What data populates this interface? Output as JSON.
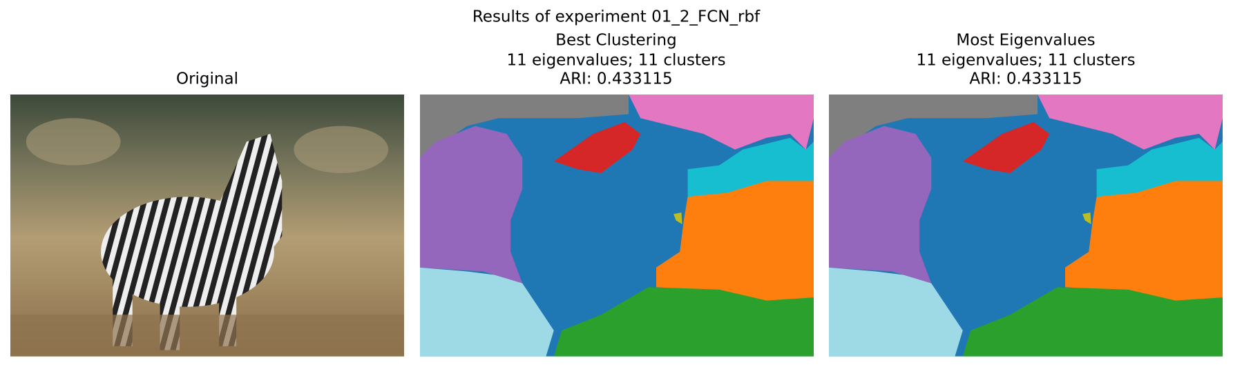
{
  "title": "Results of experiment 01_2_FCN_rbf",
  "panels": [
    {
      "title_lines": [
        "Original"
      ]
    },
    {
      "title_lines": [
        "Best Clustering",
        "11 eigenvalues; 11 clusters",
        "ARI: 0.433115"
      ]
    },
    {
      "title_lines": [
        "Most Eigenvalues",
        "11 eigenvalues; 11 clusters",
        "ARI: 0.433115"
      ]
    }
  ]
}
